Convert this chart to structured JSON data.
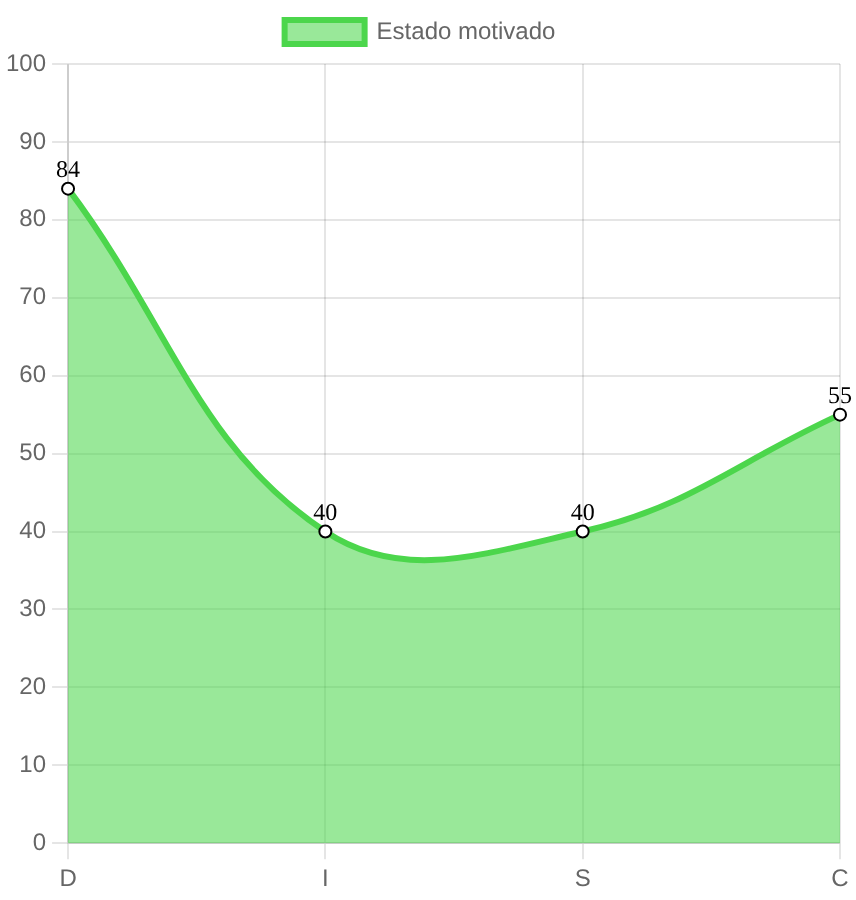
{
  "chart_data": {
    "type": "area",
    "categories": [
      "D",
      "I",
      "S",
      "C"
    ],
    "series": [
      {
        "name": "Estado motivado",
        "color": "#4cd64c",
        "values": [
          84,
          40,
          40,
          55
        ]
      }
    ],
    "ylim": [
      0,
      100
    ],
    "yticks": [
      0,
      10,
      20,
      30,
      40,
      50,
      60,
      70,
      80,
      90,
      100
    ],
    "grid": true,
    "legend": "top",
    "marker": "circle",
    "data_labels": true
  }
}
